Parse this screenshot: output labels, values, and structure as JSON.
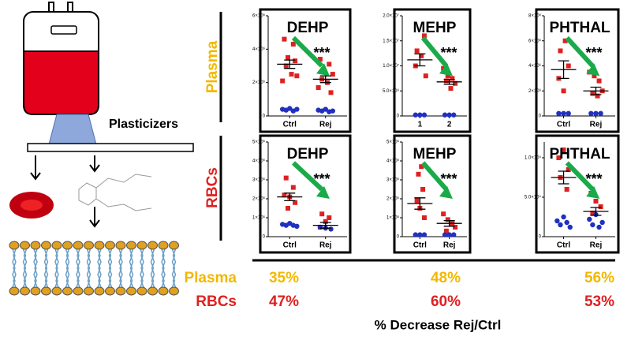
{
  "diagram": {
    "label": "Plasticizers"
  },
  "row_labels": [
    {
      "text": "Plasma",
      "color": "#f2b800"
    },
    {
      "text": "RBCs",
      "color": "#e02020"
    }
  ],
  "chart_data": [
    {
      "type": "scatter",
      "title": "DEHP",
      "annotation": "***",
      "xlim": [
        0.4,
        2.6
      ],
      "xticks": [
        {
          "value": 1,
          "label": "Ctrl"
        },
        {
          "value": 2,
          "label": "Rej"
        }
      ],
      "ylim": [
        0,
        6000000
      ],
      "yticks": [
        0,
        {
          "value": 2000000,
          "label": "2×10⁶"
        },
        {
          "value": 4000000,
          "label": "4×10⁶"
        },
        {
          "value": 6000000,
          "label": "6×10⁶"
        }
      ],
      "series": [
        {
          "color": "#e02020",
          "marker": "square",
          "x": [
            0.85,
            1.1,
            0.95,
            1.15,
            0.9,
            1.05,
            1.2,
            0.8,
            1.85,
            2.1,
            1.95,
            2.2,
            1.9,
            2.05,
            1.8,
            2.15
          ],
          "values": [
            4600000,
            4300000,
            3500000,
            3300000,
            3000000,
            2500000,
            2400000,
            2100000,
            3400000,
            3100000,
            2700000,
            2500000,
            2200000,
            2000000,
            1700000,
            1400000
          ]
        },
        {
          "color": "#2030c0",
          "marker": "circle",
          "x": [
            0.8,
            0.9,
            1.0,
            1.1,
            1.2,
            1.8,
            1.9,
            2.0,
            2.1,
            2.2
          ],
          "values": [
            400000,
            350000,
            450000,
            300000,
            400000,
            350000,
            300000,
            400000,
            250000,
            300000
          ]
        }
      ],
      "mean": [
        3100000,
        2200000
      ],
      "sem": [
        250000,
        200000
      ]
    },
    {
      "type": "scatter",
      "title": "MEHP",
      "annotation": "***",
      "xlim": [
        0.4,
        2.6
      ],
      "xticks": [
        1,
        2
      ],
      "ylim": [
        0,
        20000000
      ],
      "yticks": [
        0,
        {
          "value": 5000000,
          "label": "5.0×10⁶"
        },
        {
          "value": 10000000,
          "label": "1.0×10⁷"
        },
        {
          "value": 15000000,
          "label": "1.5×10⁷"
        },
        {
          "value": 20000000,
          "label": "2.0×10⁷"
        }
      ],
      "series": [
        {
          "color": "#e02020",
          "marker": "square",
          "x": [
            1.15,
            0.9,
            1.05,
            0.85,
            1.2,
            1.8,
            1.95,
            2.1,
            1.9,
            2.2,
            2.05
          ],
          "values": [
            16000000,
            13000000,
            12000000,
            10000000,
            8000000,
            9500000,
            8000000,
            7500000,
            7000000,
            6500000,
            5500000
          ]
        },
        {
          "color": "#2030c0",
          "marker": "circle",
          "x": [
            0.85,
            1.0,
            1.15,
            1.85,
            2.0,
            2.15
          ],
          "values": [
            200000,
            200000,
            200000,
            200000,
            200000,
            200000
          ]
        }
      ],
      "mean": [
        11200000,
        6800000
      ],
      "sem": [
        1200000,
        500000
      ]
    },
    {
      "type": "scatter",
      "title": "PHTHAL",
      "annotation": "***",
      "xlim": [
        0.4,
        2.6
      ],
      "xticks": [
        {
          "value": 1,
          "label": "Ctrl"
        },
        {
          "value": 2,
          "label": "Rej"
        }
      ],
      "ylim": [
        0,
        8000000
      ],
      "yticks": [
        0,
        {
          "value": 2000000,
          "label": "2×10⁶"
        },
        {
          "value": 4000000,
          "label": "4×10⁶"
        },
        {
          "value": 6000000,
          "label": "6×10⁶"
        },
        {
          "value": 8000000,
          "label": "8×10⁶"
        }
      ],
      "series": [
        {
          "color": "#e02020",
          "marker": "square",
          "x": [
            1.05,
            0.9,
            1.15,
            0.85,
            1.0,
            1.8,
            1.95,
            2.1,
            2.2,
            1.9,
            2.05
          ],
          "values": [
            6000000,
            5200000,
            4000000,
            3000000,
            2000000,
            3500000,
            3200000,
            2800000,
            2000000,
            1800000,
            1600000
          ]
        },
        {
          "color": "#2030c0",
          "marker": "circle",
          "x": [
            0.85,
            1.0,
            1.15,
            1.85,
            2.0,
            2.15
          ],
          "values": [
            200000,
            200000,
            200000,
            200000,
            200000,
            200000
          ]
        }
      ],
      "mean": [
        3700000,
        2000000
      ],
      "sem": [
        700000,
        300000
      ]
    },
    {
      "type": "scatter",
      "title": "DEHP",
      "annotation": "***",
      "xlim": [
        0.4,
        2.6
      ],
      "xticks": [
        {
          "value": 1,
          "label": "Ctrl"
        },
        {
          "value": 2,
          "label": "Rej"
        }
      ],
      "ylim": [
        0,
        5000000
      ],
      "yticks": [
        0,
        {
          "value": 1000000,
          "label": "1×10⁶"
        },
        {
          "value": 2000000,
          "label": "2×10⁶"
        },
        {
          "value": 3000000,
          "label": "3×10⁶"
        },
        {
          "value": 4000000,
          "label": "4×10⁶"
        },
        {
          "value": 5000000,
          "label": "5×10⁶"
        }
      ],
      "series": [
        {
          "color": "#e02020",
          "marker": "square",
          "x": [
            0.9,
            1.1,
            0.85,
            1.0,
            1.15,
            0.95,
            1.9,
            2.1,
            2.0,
            1.85
          ],
          "values": [
            3100000,
            2600000,
            2200000,
            2100000,
            1800000,
            1500000,
            1200000,
            1000000,
            800000,
            500000
          ]
        },
        {
          "color": "#2030c0",
          "marker": "circle",
          "x": [
            0.8,
            0.9,
            1.0,
            1.1,
            1.2,
            1.85,
            2.0,
            2.15
          ],
          "values": [
            650000,
            600000,
            700000,
            600000,
            550000,
            500000,
            450000,
            400000
          ]
        }
      ],
      "mean": [
        2100000,
        600000
      ],
      "sem": [
        200000,
        150000
      ]
    },
    {
      "type": "scatter",
      "title": "MEHP",
      "annotation": "***",
      "xlim": [
        0.4,
        2.6
      ],
      "xticks": [
        {
          "value": 1,
          "label": "Ctrl"
        },
        {
          "value": 2,
          "label": "Rej"
        }
      ],
      "ylim": [
        0,
        5000000
      ],
      "yticks": [
        0,
        {
          "value": 1000000,
          "label": "1×10⁶"
        },
        {
          "value": 2000000,
          "label": "2×10⁶"
        },
        {
          "value": 3000000,
          "label": "3×10⁶"
        },
        {
          "value": 4000000,
          "label": "4×10⁶"
        },
        {
          "value": 5000000,
          "label": "5×10⁶"
        }
      ],
      "series": [
        {
          "color": "#e02020",
          "marker": "square",
          "x": [
            1.05,
            0.95,
            1.1,
            0.9,
            1.0,
            1.15,
            1.8,
            1.95,
            2.1,
            2.2,
            1.9
          ],
          "values": [
            3700000,
            3300000,
            2500000,
            1900000,
            1500000,
            1000000,
            1200000,
            900000,
            700000,
            500000,
            300000
          ]
        },
        {
          "color": "#2030c0",
          "marker": "circle",
          "x": [
            0.85,
            1.0,
            1.15,
            1.85,
            2.0,
            2.15
          ],
          "values": [
            100000,
            100000,
            100000,
            100000,
            100000,
            100000
          ]
        }
      ],
      "mean": [
        1750000,
        700000
      ],
      "sem": [
        300000,
        150000
      ]
    },
    {
      "type": "scatter",
      "title": "PHTHAL",
      "annotation": "***",
      "xlim": [
        0.4,
        2.6
      ],
      "xticks": [
        {
          "value": 1,
          "label": "Ctrl"
        },
        {
          "value": 2,
          "label": "Rej"
        }
      ],
      "ylim": [
        0,
        120000
      ],
      "yticks": [
        0,
        {
          "value": 50000,
          "label": "5.0×10⁴"
        },
        {
          "value": 100000,
          "label": "1.0×10⁵"
        }
      ],
      "series": [
        {
          "color": "#e02020",
          "marker": "square",
          "x": [
            1.0,
            0.85,
            1.15,
            0.9,
            1.1,
            1.85,
            2.0,
            2.15,
            1.9
          ],
          "values": [
            110000,
            100000,
            85000,
            75000,
            60000,
            55000,
            45000,
            38000,
            30000
          ]
        },
        {
          "color": "#2030c0",
          "marker": "circle",
          "x": [
            0.8,
            0.9,
            1.0,
            1.1,
            1.2,
            1.8,
            1.9,
            2.0,
            2.1,
            2.2
          ],
          "values": [
            20000,
            15000,
            25000,
            18000,
            12000,
            22000,
            15000,
            28000,
            12000,
            18000
          ]
        }
      ],
      "mean": [
        75000,
        32000
      ],
      "sem": [
        8000,
        5000
      ]
    }
  ],
  "table": {
    "rows": [
      {
        "label": "Plasma",
        "color": "#f2b800",
        "values": [
          "35%",
          "48%",
          "56%"
        ]
      },
      {
        "label": "RBCs",
        "color": "#e02020",
        "values": [
          "47%",
          "60%",
          "53%"
        ]
      }
    ],
    "caption": "% Decrease Rej/Ctrl"
  }
}
